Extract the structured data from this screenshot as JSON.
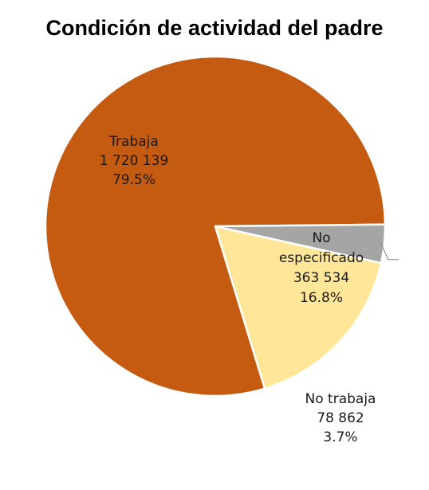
{
  "chart_data": {
    "type": "pie",
    "title": "Condición de actividad del padre",
    "slices": [
      {
        "label": "Trabaja",
        "label_lines": [
          "Trabaja"
        ],
        "value": 1720139,
        "value_text": "1 720 139",
        "percent": 79.5,
        "percent_text": "79.5%",
        "color": "#C55A11"
      },
      {
        "label": "No especificado",
        "label_lines": [
          "No",
          "especificado"
        ],
        "value": 363534,
        "value_text": "363 534",
        "percent": 16.8,
        "percent_text": "16.8%",
        "color": "#FFE699"
      },
      {
        "label": "No trabaja",
        "label_lines": [
          "No trabaja"
        ],
        "value": 78862,
        "value_text": "78 862",
        "percent": 3.7,
        "percent_text": "3.7%",
        "color": "#A5A5A5"
      }
    ],
    "slice_border_color": "#ffffff",
    "label_text_color": "#1a1a1a",
    "legend": "none"
  }
}
